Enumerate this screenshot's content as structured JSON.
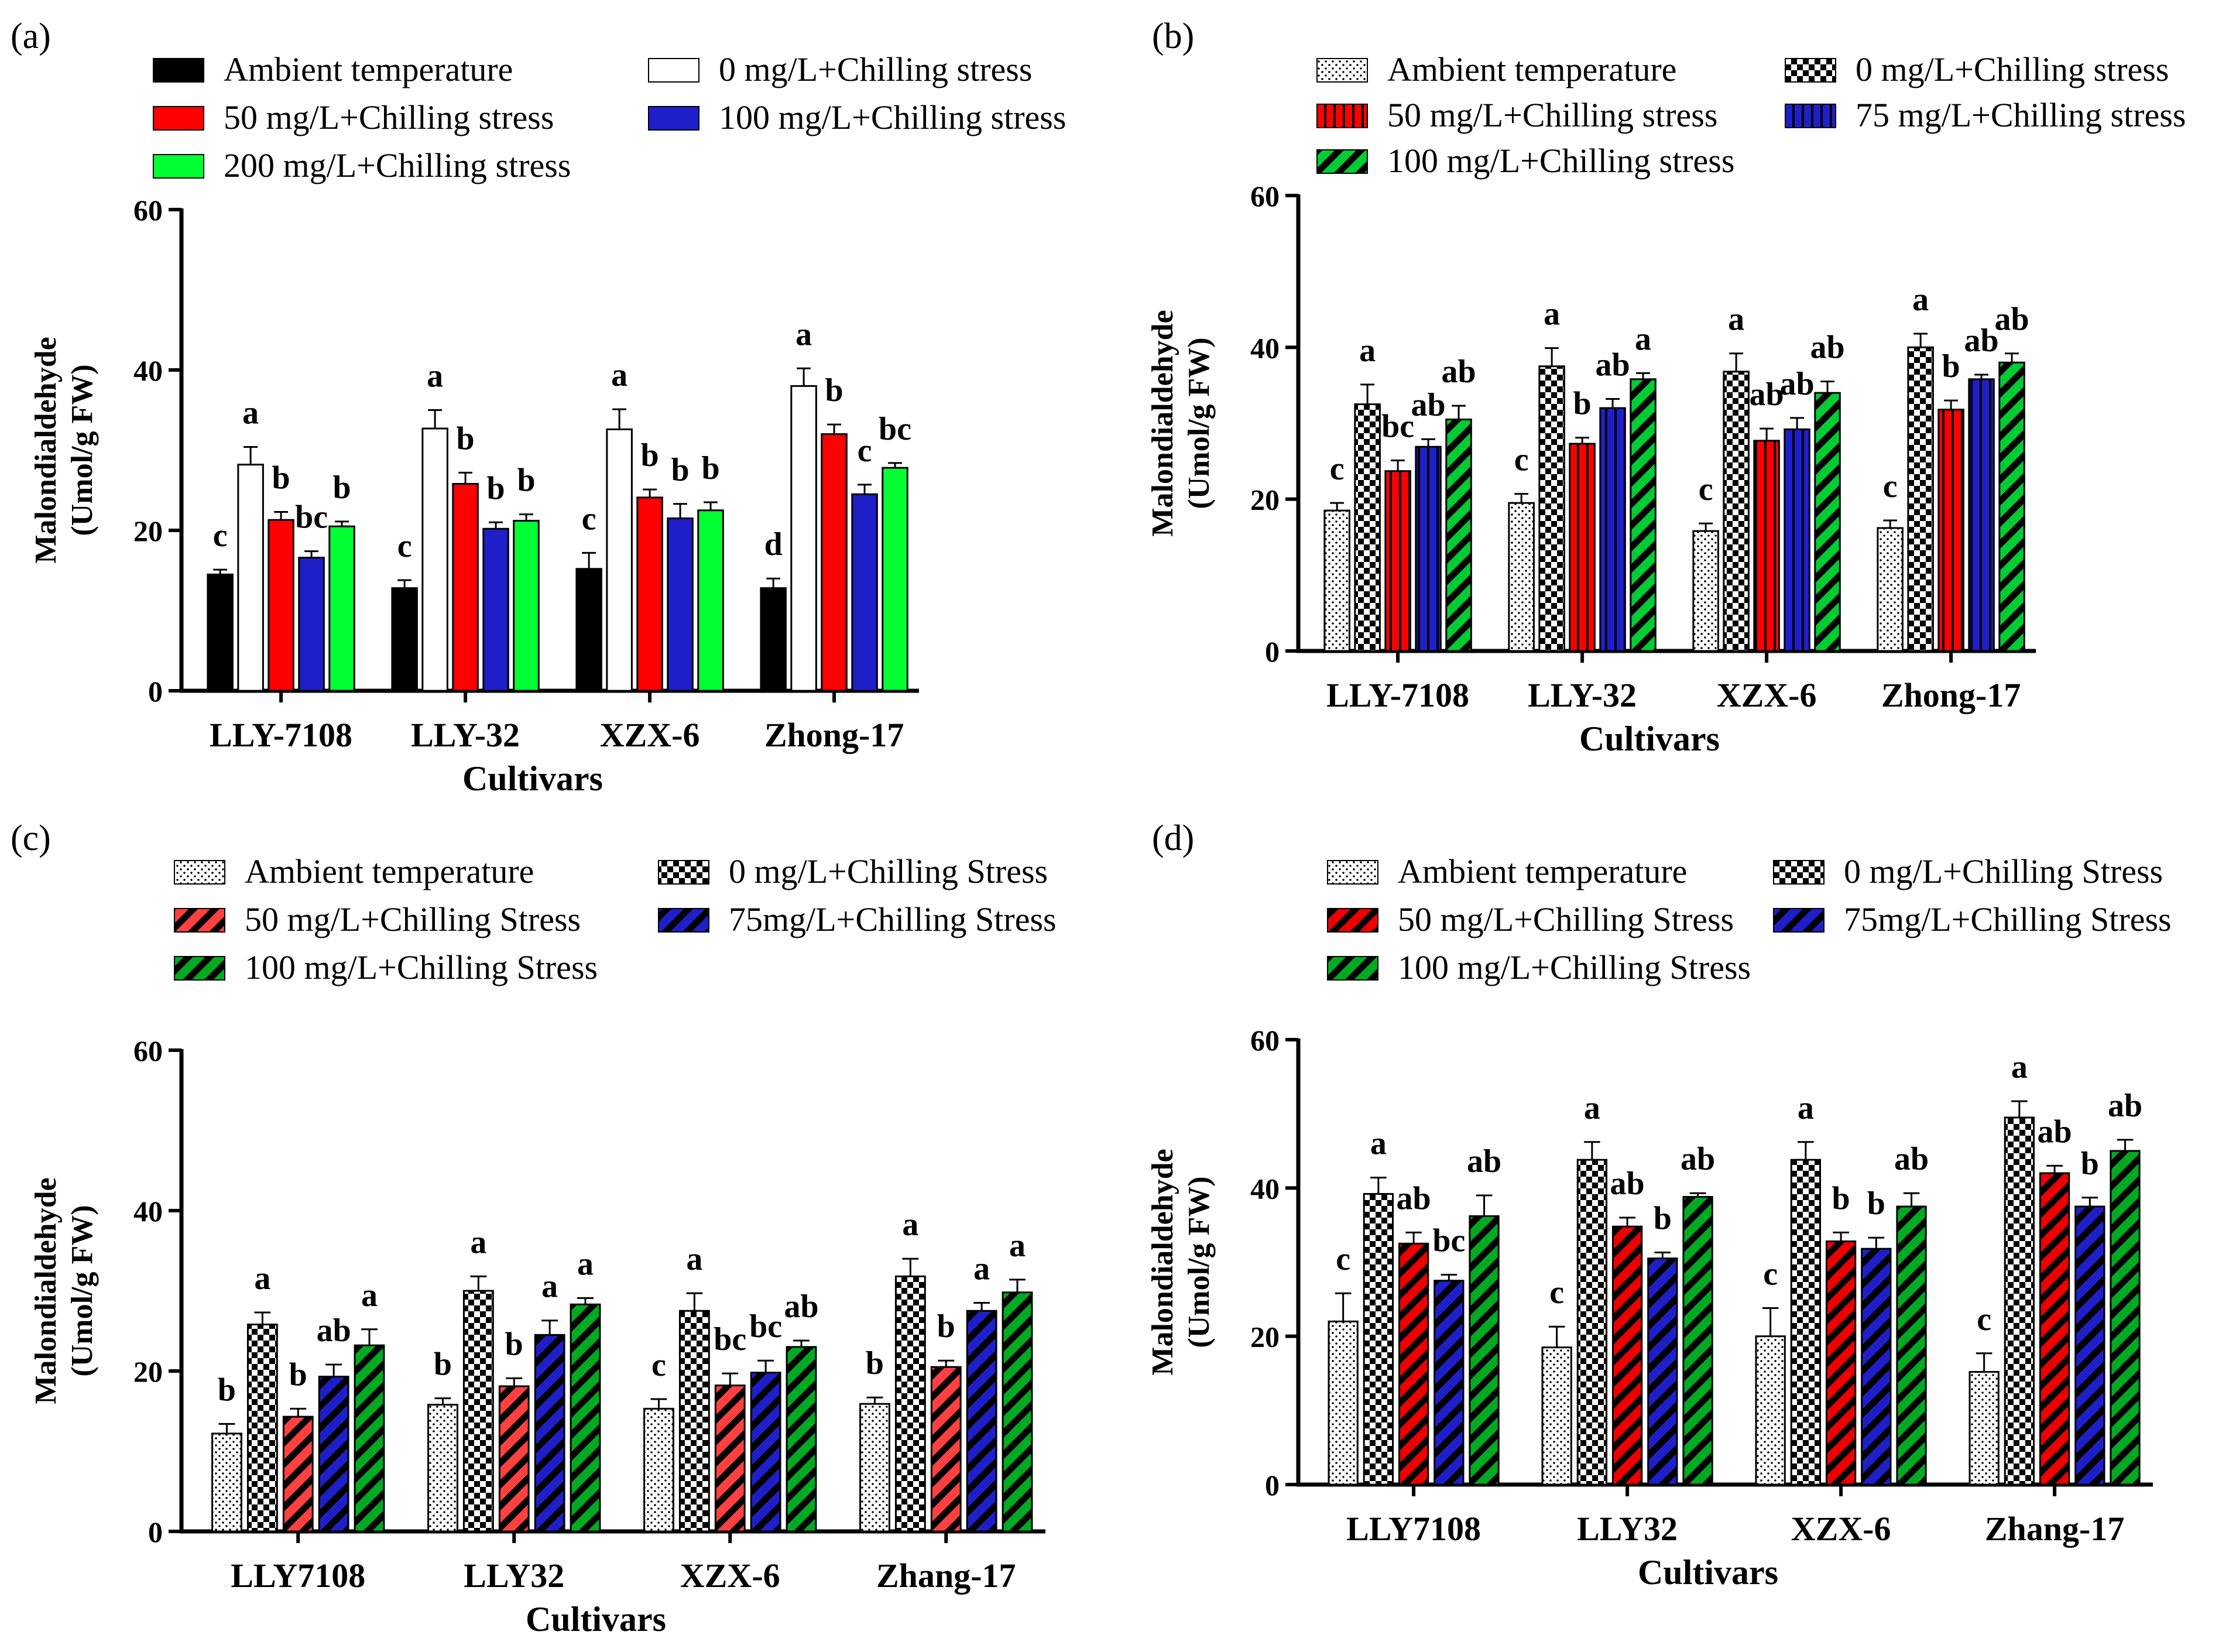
{
  "panels": [
    {
      "id": "a",
      "label": "(a)",
      "chart_data": {
        "type": "bar",
        "title": "",
        "xlabel": "Cultivars",
        "ylabel": "Malondialdehyde (Umol/g FW)",
        "ylim": [
          0,
          60
        ],
        "yticks": [
          "0",
          "20",
          "40",
          "60"
        ],
        "categories": [
          "LLY-7108",
          "LLY-32",
          "XZX-6",
          "Zhong-17"
        ],
        "series": [
          {
            "name": "Ambient temperature",
            "color": "#000000",
            "pattern": "solid",
            "values": [
              14.5,
              12.8,
              15.2,
              12.8
            ],
            "errors": [
              0.6,
              1.0,
              2.0,
              1.2
            ],
            "letters": [
              "c",
              "c",
              "c",
              "d"
            ]
          },
          {
            "name": "0 mg/L+Chilling stress",
            "color": "#ffffff",
            "pattern": "solid",
            "values": [
              28.2,
              32.7,
              32.6,
              38.0
            ],
            "errors": [
              2.2,
              2.3,
              2.5,
              2.2
            ],
            "letters": [
              "a",
              "a",
              "a",
              "a"
            ]
          },
          {
            "name": "50 mg/L+Chilling stress",
            "color": "#ff0000",
            "pattern": "solid",
            "values": [
              21.3,
              25.8,
              24.1,
              32.0
            ],
            "errors": [
              1.0,
              1.4,
              1.0,
              1.2
            ],
            "letters": [
              "b",
              "b",
              "b",
              "b"
            ]
          },
          {
            "name": "100 mg/L+Chilling stress",
            "color": "#1f1fc9",
            "pattern": "solid",
            "values": [
              16.6,
              20.2,
              21.5,
              24.5
            ],
            "errors": [
              0.8,
              0.8,
              1.8,
              1.2
            ],
            "letters": [
              "bc",
              "b",
              "b",
              "c"
            ]
          },
          {
            "name": "200 mg/L+Chilling stress",
            "color": "#00ff33",
            "pattern": "solid",
            "values": [
              20.5,
              21.2,
              22.5,
              27.8
            ],
            "errors": [
              0.6,
              0.8,
              1.0,
              0.6
            ],
            "letters": [
              "b",
              "b",
              "b",
              "bc"
            ]
          }
        ],
        "legend": "top"
      }
    },
    {
      "id": "b",
      "label": "(b)",
      "chart_data": {
        "type": "bar",
        "title": "",
        "xlabel": "Cultivars",
        "ylabel": "Malondialdehyde (Umol/g FW)",
        "ylim": [
          0,
          60
        ],
        "yticks": [
          "0",
          "20",
          "40",
          "60"
        ],
        "categories": [
          "LLY-7108",
          "LLY-32",
          "XZX-6",
          "Zhong-17"
        ],
        "series": [
          {
            "name": "Ambient temperature",
            "color": "#ffffff",
            "pattern": "dots",
            "values": [
              18.5,
              19.5,
              15.8,
              16.2
            ],
            "errors": [
              1.0,
              1.2,
              1.0,
              1.0
            ],
            "letters": [
              "c",
              "c",
              "c",
              "c"
            ]
          },
          {
            "name": "0 mg/L+Chilling stress",
            "color": "#000000",
            "pattern": "checker",
            "values": [
              32.5,
              37.5,
              36.8,
              40.0
            ],
            "errors": [
              2.6,
              2.4,
              2.4,
              1.8
            ],
            "letters": [
              "a",
              "a",
              "a",
              "a"
            ]
          },
          {
            "name": "50 mg/L+Chilling stress",
            "color": "#ff0000",
            "pattern": "vstripe",
            "values": [
              23.7,
              27.3,
              27.7,
              31.8
            ],
            "errors": [
              1.4,
              0.8,
              1.6,
              1.2
            ],
            "letters": [
              "bc",
              "b",
              "ab",
              "b"
            ]
          },
          {
            "name": "75 mg/L+Chilling stress",
            "color": "#1f1fc9",
            "pattern": "vstripe",
            "values": [
              26.9,
              32.0,
              29.2,
              35.8
            ],
            "errors": [
              1.0,
              1.2,
              1.5,
              0.6
            ],
            "letters": [
              "ab",
              "ab",
              "ab",
              "ab"
            ]
          },
          {
            "name": "100 mg/L+Chilling stress",
            "color": "#00cc33",
            "pattern": "diag",
            "values": [
              30.5,
              35.8,
              34.0,
              38.0
            ],
            "errors": [
              1.8,
              0.8,
              1.5,
              1.2
            ],
            "letters": [
              "ab",
              "a",
              "ab",
              "ab"
            ]
          }
        ],
        "legend": "top"
      }
    },
    {
      "id": "c",
      "label": "(c)",
      "chart_data": {
        "type": "bar",
        "title": "",
        "xlabel": "Cultivars",
        "ylabel": "Malondialdehyde (Umol/g FW)",
        "ylim": [
          0,
          60
        ],
        "yticks": [
          "0",
          "20",
          "40",
          "60"
        ],
        "categories": [
          "LLY7108",
          "LLY32",
          "XZX-6",
          "Zhang-17"
        ],
        "series": [
          {
            "name": "Ambient temperature",
            "color": "#ffffff",
            "pattern": "dots",
            "values": [
              12.2,
              15.8,
              15.3,
              15.9
            ],
            "errors": [
              1.2,
              0.8,
              1.2,
              0.8
            ],
            "letters": [
              "b",
              "b",
              "c",
              "b"
            ]
          },
          {
            "name": "0 mg/L+Chilling Stress",
            "color": "#000000",
            "pattern": "checker",
            "values": [
              25.8,
              30.0,
              27.5,
              31.8
            ],
            "errors": [
              1.5,
              1.8,
              2.2,
              2.2
            ],
            "letters": [
              "a",
              "a",
              "a",
              "a"
            ]
          },
          {
            "name": "50 mg/L+Chilling Stress",
            "color": "#ff4040",
            "pattern": "diag",
            "values": [
              14.3,
              18.1,
              18.2,
              20.5
            ],
            "errors": [
              1.0,
              1.0,
              1.5,
              0.8
            ],
            "letters": [
              "b",
              "b",
              "bc",
              "b"
            ]
          },
          {
            "name": "75mg/L+Chilling Stress",
            "color": "#1f1fc9",
            "pattern": "diag",
            "values": [
              19.3,
              24.5,
              19.8,
              27.5
            ],
            "errors": [
              1.5,
              1.8,
              1.5,
              1.0
            ],
            "letters": [
              "ab",
              "a",
              "bc",
              "a"
            ]
          },
          {
            "name": "100 mg/L+Chilling Stress",
            "color": "#00aa22",
            "pattern": "diag",
            "values": [
              23.2,
              28.3,
              23.0,
              29.8
            ],
            "errors": [
              2.0,
              0.8,
              0.8,
              1.6
            ],
            "letters": [
              "a",
              "a",
              "ab",
              "a"
            ]
          }
        ],
        "legend": "top"
      }
    },
    {
      "id": "d",
      "label": "(d)",
      "chart_data": {
        "type": "bar",
        "title": "",
        "xlabel": "Cultivars",
        "ylabel": "Malondialdehyde (Umol/g FW)",
        "ylim": [
          0,
          60
        ],
        "yticks": [
          "0",
          "20",
          "40",
          "60"
        ],
        "categories": [
          "LLY7108",
          "LLY32",
          "XZX-6",
          "Zhang-17"
        ],
        "series": [
          {
            "name": "Ambient temperature",
            "color": "#ffffff",
            "pattern": "dots",
            "values": [
              22.0,
              18.5,
              20.0,
              15.2
            ],
            "errors": [
              3.8,
              2.8,
              3.8,
              2.5
            ],
            "letters": [
              "c",
              "c",
              "c",
              "c"
            ]
          },
          {
            "name": "0 mg/L+Chilling Stress",
            "color": "#000000",
            "pattern": "checker",
            "values": [
              39.2,
              43.8,
              43.8,
              49.5
            ],
            "errors": [
              2.2,
              2.4,
              2.4,
              2.2
            ],
            "letters": [
              "a",
              "a",
              "a",
              "a"
            ]
          },
          {
            "name": "50 mg/L+Chilling Stress",
            "color": "#ee0000",
            "pattern": "diag",
            "values": [
              32.5,
              34.8,
              32.8,
              42.0
            ],
            "errors": [
              1.5,
              1.2,
              1.2,
              1.0
            ],
            "letters": [
              "ab",
              "ab",
              "b",
              "ab"
            ]
          },
          {
            "name": "75mg/L+Chilling Stress",
            "color": "#1f1fc9",
            "pattern": "diag",
            "values": [
              27.5,
              30.5,
              31.8,
              37.5
            ],
            "errors": [
              0.8,
              0.8,
              1.5,
              1.2
            ],
            "letters": [
              "bc",
              "b",
              "b",
              "b"
            ]
          },
          {
            "name": "100 mg/L+Chilling Stress",
            "color": "#00aa22",
            "pattern": "diag",
            "values": [
              36.2,
              38.8,
              37.5,
              45.0
            ],
            "errors": [
              2.8,
              0.5,
              1.8,
              1.5
            ],
            "letters": [
              "ab",
              "ab",
              "ab",
              "ab"
            ]
          }
        ],
        "legend": "top"
      }
    }
  ]
}
